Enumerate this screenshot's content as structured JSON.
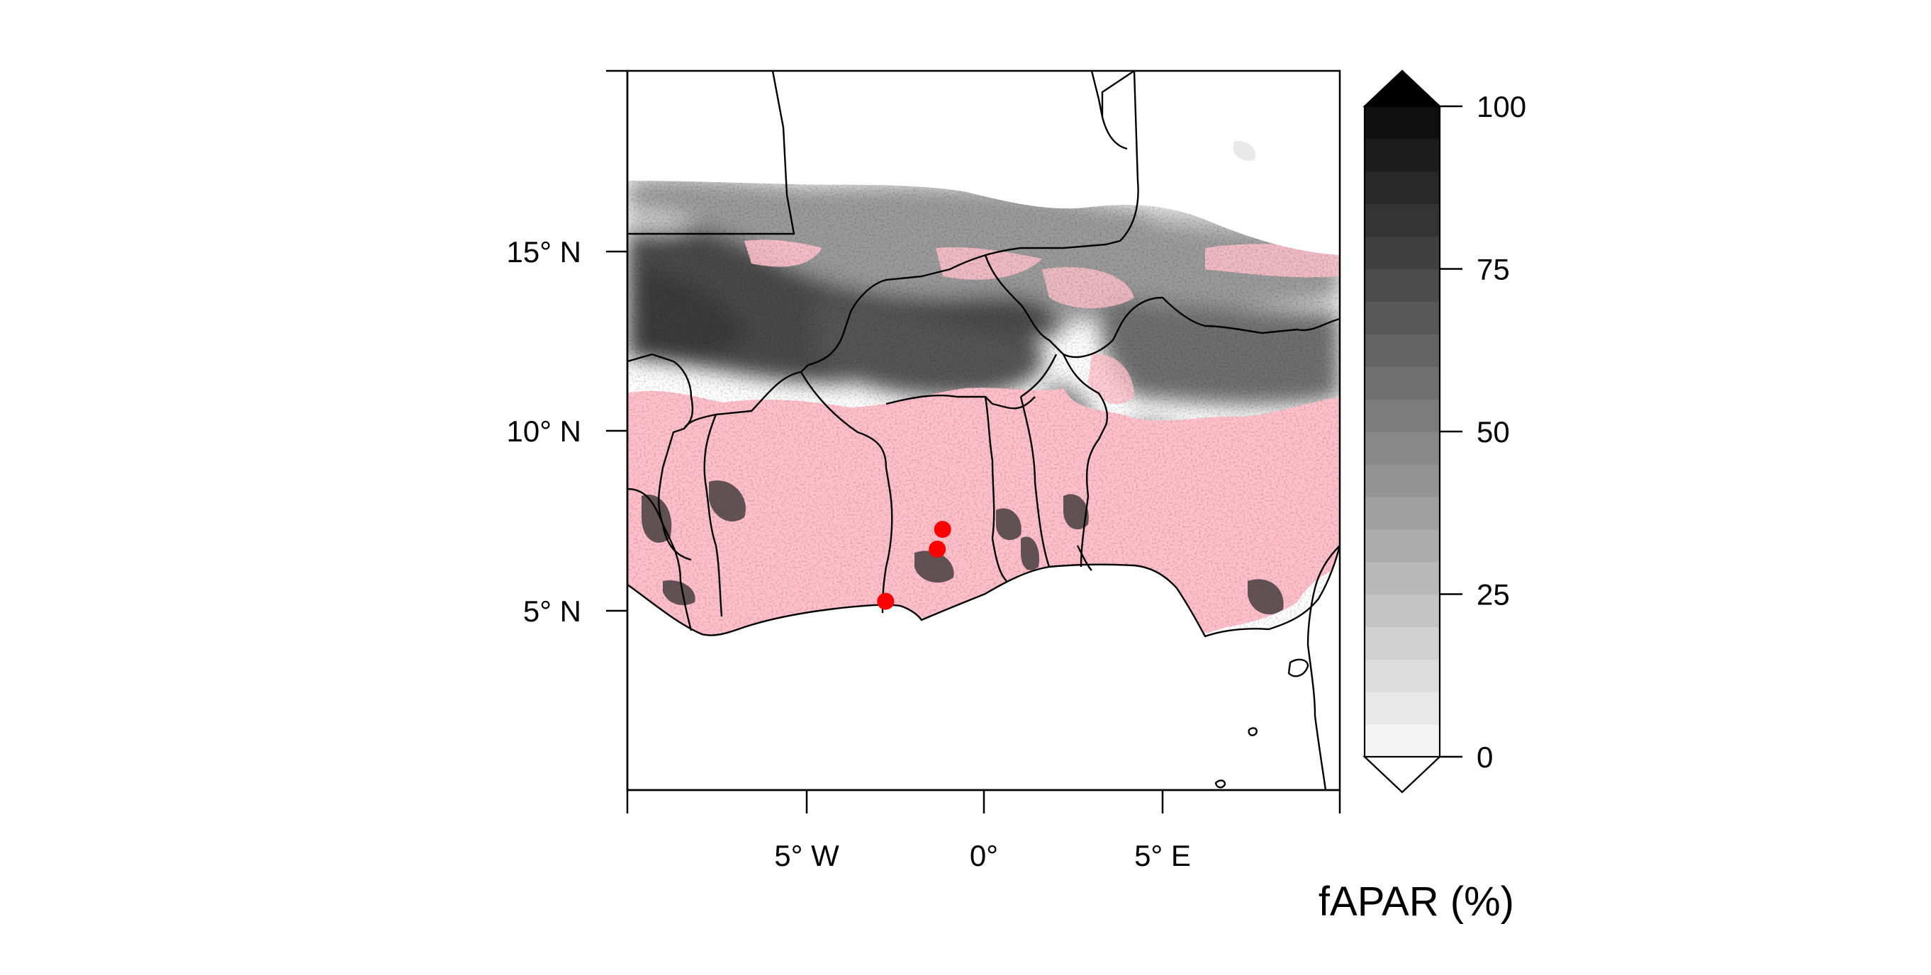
{
  "map": {
    "y_axis": {
      "ticks": [
        {
          "value": 15,
          "label": "15° N"
        },
        {
          "value": 10,
          "label": "10° N"
        },
        {
          "value": 5,
          "label": "5° N"
        }
      ]
    },
    "x_axis": {
      "ticks": [
        {
          "value": -5,
          "label": "5° W"
        },
        {
          "value": 0,
          "label": "0°"
        },
        {
          "value": 5,
          "label": "5° E"
        }
      ]
    },
    "extent": {
      "lon": [
        -10,
        10
      ],
      "lat": [
        0,
        20
      ]
    },
    "no_data_color": "#ffc0cb",
    "sites": [
      {
        "lon": -2.75,
        "lat": 5.25
      },
      {
        "lon": -1.3,
        "lat": 6.7
      },
      {
        "lon": -1.15,
        "lat": 7.25
      }
    ],
    "site_color": "#ff0000"
  },
  "colorbar": {
    "title": "fAPAR (%)",
    "min": 0,
    "max": 100,
    "step": 5,
    "extend": "both",
    "ticks": [
      {
        "value": 100,
        "label": "100"
      },
      {
        "value": 75,
        "label": "75"
      },
      {
        "value": 50,
        "label": "50"
      },
      {
        "value": 25,
        "label": "25"
      },
      {
        "value": 0,
        "label": "0"
      }
    ],
    "palette": "grey-scale white to black"
  }
}
